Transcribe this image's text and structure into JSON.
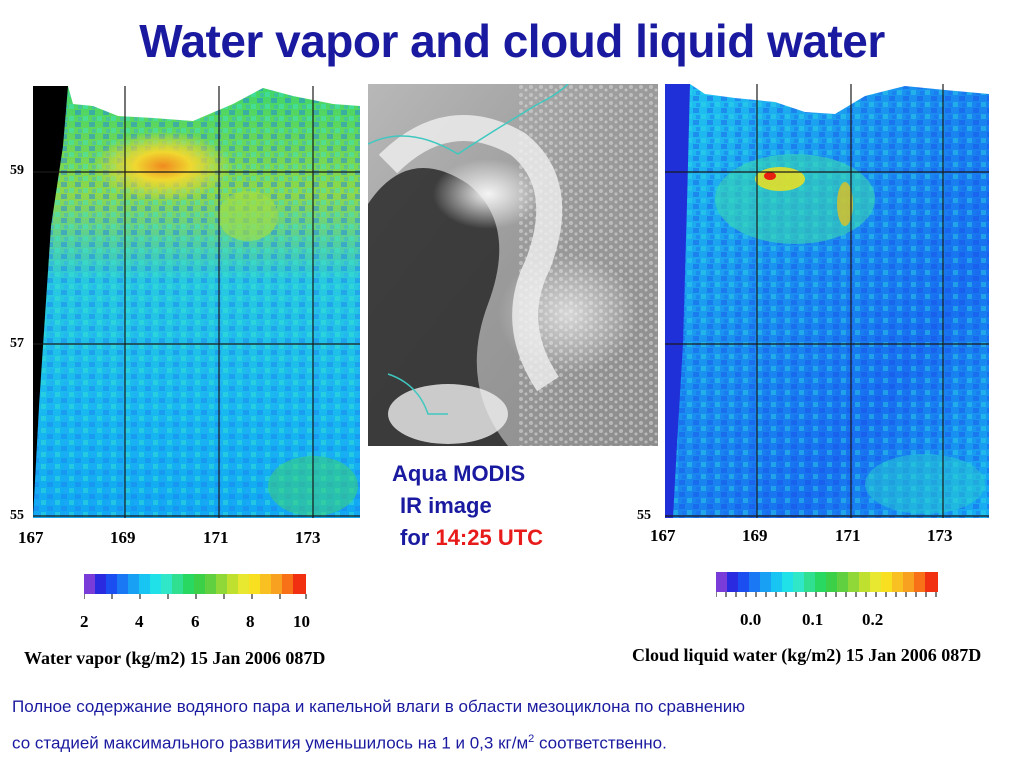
{
  "title": "Water vapor and cloud liquid water",
  "left_map": {
    "lat_ticks": [
      "59",
      "57",
      "55"
    ],
    "lon_ticks": [
      "167",
      "169",
      "171",
      "173"
    ],
    "colorbar_ticks": [
      "2",
      "4",
      "6",
      "8",
      "10"
    ],
    "caption": "Water vapor (kg/m2) 15 Jan 2006 087D"
  },
  "modis": {
    "line1": "Aqua MODIS",
    "line2": "IR image",
    "line3_prefix": "for ",
    "line3_time": "14:25 UTC"
  },
  "right_map": {
    "lat_ticks": [
      "55"
    ],
    "lon_ticks": [
      "167",
      "169",
      "171",
      "173"
    ],
    "colorbar_ticks": [
      "0.0",
      "0.1",
      "0.2"
    ],
    "caption": "Cloud liquid water (kg/m2) 15 Jan 2006 087D"
  },
  "bottom_text": {
    "line1": "Полное содержание водяного пара и капельной влаги в области мезоциклона по сравнению",
    "line2_a": "со стадией максимального развития уменьшилось на 1 и 0,3 кг/м",
    "line2_sup": "2",
    "line2_b": " соответственно."
  },
  "colors": {
    "title": "#1a1aa0",
    "highlight": "#e81b1b"
  }
}
